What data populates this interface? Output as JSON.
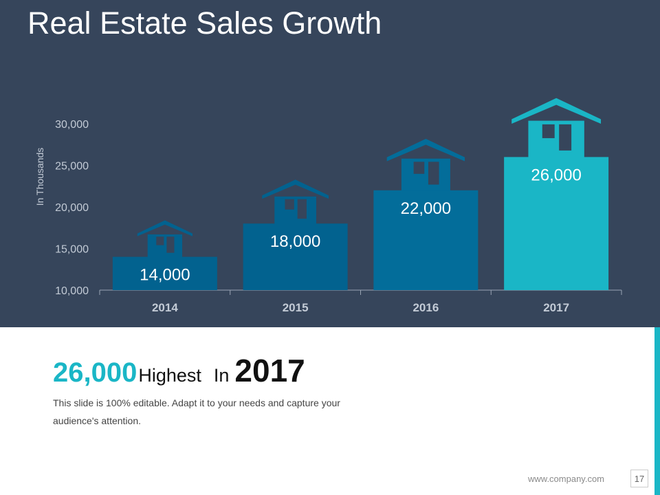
{
  "slide": {
    "title": "Real Estate Sales Growth",
    "highlight": {
      "value": "26,000",
      "text": "Highest",
      "in": "In",
      "year": "2017"
    },
    "description": "This slide is 100% editable. Adapt it to your needs and capture your audience's attention.",
    "footer_url": "www.company.com",
    "page_number": "17"
  },
  "colors": {
    "panel": "#36455b",
    "bar_dark": "#02628f",
    "bar_mid": "#036d9a",
    "bar_accent": "#1ab6c6",
    "axis_text": "#c3cbd6",
    "value_text": "#ffffff"
  },
  "chart_data": {
    "type": "bar",
    "title": "",
    "xlabel": "",
    "ylabel": "In Thousands",
    "categories": [
      "2014",
      "2015",
      "2016",
      "2017"
    ],
    "values": [
      14000,
      18000,
      22000,
      26000
    ],
    "data_labels": [
      "14,000",
      "18,000",
      "22,000",
      "26,000"
    ],
    "ylim": [
      10000,
      30000
    ],
    "yticks": [
      10000,
      15000,
      20000,
      25000,
      30000
    ],
    "ytick_labels": [
      "10,000",
      "15,000",
      "20,000",
      "25,000",
      "30,000"
    ],
    "grid": false,
    "legend": "none",
    "bar_style": "house",
    "bar_colors": [
      "#02628f",
      "#02628f",
      "#036d9a",
      "#1ab6c6"
    ]
  }
}
